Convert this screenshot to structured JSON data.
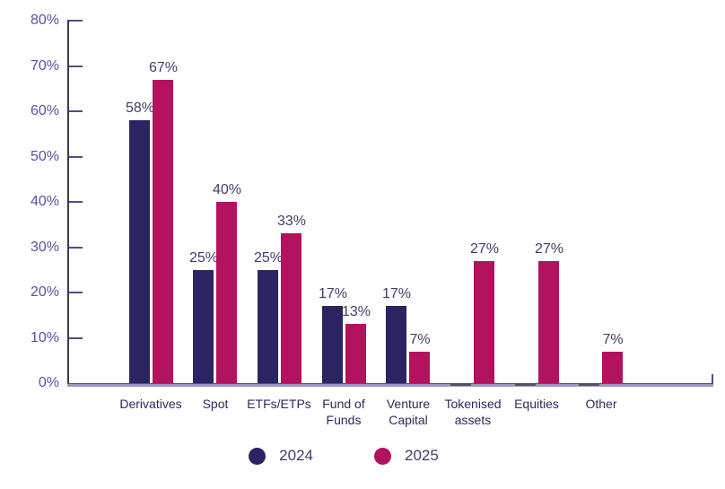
{
  "chart_data": {
    "type": "bar",
    "categories": [
      "Derivatives",
      "Spot",
      "ETFs/ETPs",
      "Fund of Funds",
      "Venture Capital",
      "Tokenised assets",
      "Equities",
      "Other"
    ],
    "category_lines": [
      [
        "Derivatives"
      ],
      [
        "Spot"
      ],
      [
        "ETFs/ETPs"
      ],
      [
        "Fund of",
        "Funds"
      ],
      [
        "Venture",
        "Capital"
      ],
      [
        "Tokenised",
        "assets"
      ],
      [
        "Equities"
      ],
      [
        "Other"
      ]
    ],
    "series": [
      {
        "name": "2024",
        "color": "#2a2462",
        "values": [
          58,
          25,
          25,
          17,
          17,
          0,
          0,
          0
        ]
      },
      {
        "name": "2025",
        "color": "#b3125e",
        "values": [
          67,
          40,
          33,
          13,
          7,
          27,
          27,
          7
        ]
      }
    ],
    "data_labels": [
      [
        "58%",
        "25%",
        "25%",
        "17%",
        "17%",
        "",
        "",
        ""
      ],
      [
        "67%",
        "40%",
        "33%",
        "13%",
        "7%",
        "27%",
        "27%",
        "7%"
      ]
    ],
    "y_ticks": [
      "0%",
      "10%",
      "20%",
      "30%",
      "40%",
      "50%",
      "60%",
      "70%",
      "80%"
    ],
    "ylim": [
      0,
      80
    ],
    "grid": false,
    "legend_position": "bottom",
    "title": "",
    "xlabel": "",
    "ylabel": ""
  },
  "legend": {
    "items": [
      {
        "label": "2024",
        "color": "#2a2462"
      },
      {
        "label": "2025",
        "color": "#b3125e"
      }
    ]
  },
  "colors": {
    "background": "#ffffff",
    "series_2024": "#2a2462",
    "series_2025": "#b3125e",
    "axis_line": "#3c3a52",
    "tick": "#514d86",
    "baseline_light": "#9a99c2",
    "baseline_dark": "#53527a",
    "zero_bar": "#53535f",
    "y_label": "#5a52a3",
    "category_label": "#2d2a5e",
    "data_label": "#433d6b",
    "legend_label": "#433d6b"
  }
}
